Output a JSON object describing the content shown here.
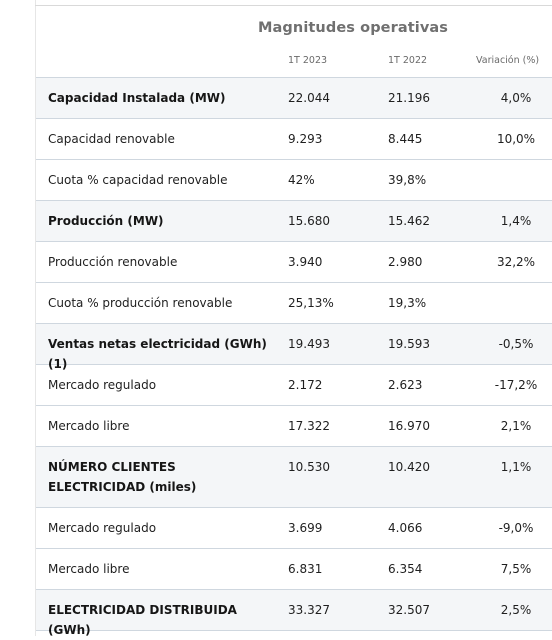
{
  "table": {
    "title": "Magnitudes operativas",
    "columns": {
      "col_2023": "1T 2023",
      "col_2022": "1T 2022",
      "col_var": "Variación (%)"
    },
    "rows": [
      {
        "label": "Capacidad Instalada (MW)",
        "v2023": "22.044",
        "v2022": "21.196",
        "var": "4,0%"
      },
      {
        "label": "Capacidad renovable",
        "v2023": "9.293",
        "v2022": "8.445",
        "var": "10,0%"
      },
      {
        "label": "Cuota % capacidad renovable",
        "v2023": "42%",
        "v2022": "39,8%",
        "var": ""
      },
      {
        "label": "Producción (MW)",
        "v2023": "15.680",
        "v2022": "15.462",
        "var": "1,4%"
      },
      {
        "label": "Producción renovable",
        "v2023": "3.940",
        "v2022": "2.980",
        "var": "32,2%"
      },
      {
        "label": "Cuota % producción renovable",
        "v2023": "25,13%",
        "v2022": "19,3%",
        "var": ""
      },
      {
        "label": "Ventas netas electricidad (GWh) (1)",
        "v2023": "19.493",
        "v2022": "19.593",
        "var": "-0,5%"
      },
      {
        "label": "Mercado regulado",
        "v2023": "2.172",
        "v2022": "2.623",
        "var": "-17,2%"
      },
      {
        "label": "Mercado libre",
        "v2023": "17.322",
        "v2022": "16.970",
        "var": "2,1%"
      },
      {
        "label": "NÚMERO CLIENTES ELECTRICIDAD (miles)",
        "v2023": "10.530",
        "v2022": "10.420",
        "var": "1,1%"
      },
      {
        "label": "Mercado regulado",
        "v2023": "3.699",
        "v2022": "4.066",
        "var": "-9,0%"
      },
      {
        "label": "Mercado libre",
        "v2023": "6.831",
        "v2022": "6.354",
        "var": "7,5%"
      },
      {
        "label": "ELECTRICIDAD DISTRIBUIDA (GWh)",
        "v2023": "33.327",
        "v2022": "32.507",
        "var": "2,5%"
      }
    ]
  },
  "colors": {
    "row_shade": "#f4f6f8",
    "rule": "#cfd7df",
    "title": "#707070"
  }
}
